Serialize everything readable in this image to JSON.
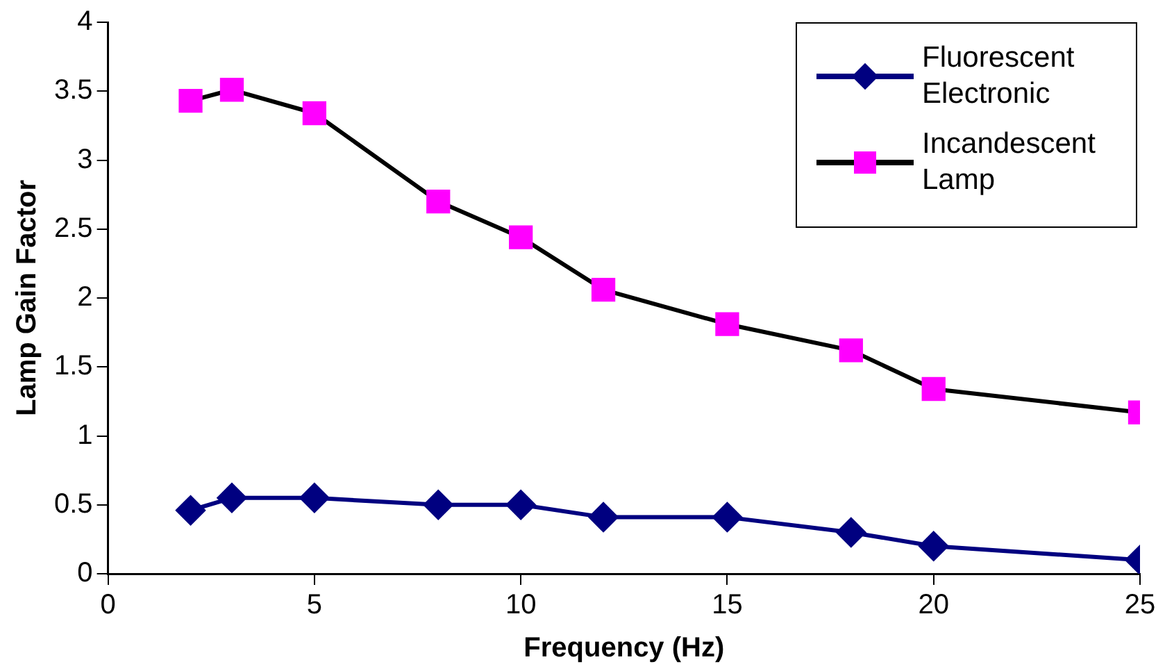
{
  "chart_data": {
    "type": "line",
    "xlabel": "Frequency (Hz)",
    "ylabel": "Lamp Gain Factor",
    "x": [
      2,
      3,
      5,
      8,
      10,
      12,
      15,
      18,
      20,
      25
    ],
    "series": [
      {
        "name": "Fluorescent Electronic",
        "color": "#000080",
        "marker": "diamond",
        "values": [
          0.46,
          0.55,
          0.55,
          0.5,
          0.5,
          0.41,
          0.41,
          0.3,
          0.2,
          0.1
        ]
      },
      {
        "name": "Incandescent Lamp",
        "color": "#ff00ff",
        "marker": "square",
        "values": [
          3.43,
          3.51,
          3.34,
          2.7,
          2.44,
          2.06,
          1.81,
          1.62,
          1.34,
          1.17
        ]
      }
    ],
    "xlim": [
      0,
      25
    ],
    "xticks": [
      0,
      5,
      10,
      15,
      20,
      25
    ],
    "ylim": [
      0,
      4
    ],
    "yticks": [
      0,
      0.5,
      1,
      1.5,
      2,
      2.5,
      3,
      3.5,
      4
    ],
    "grid": false,
    "legend": "top right"
  }
}
